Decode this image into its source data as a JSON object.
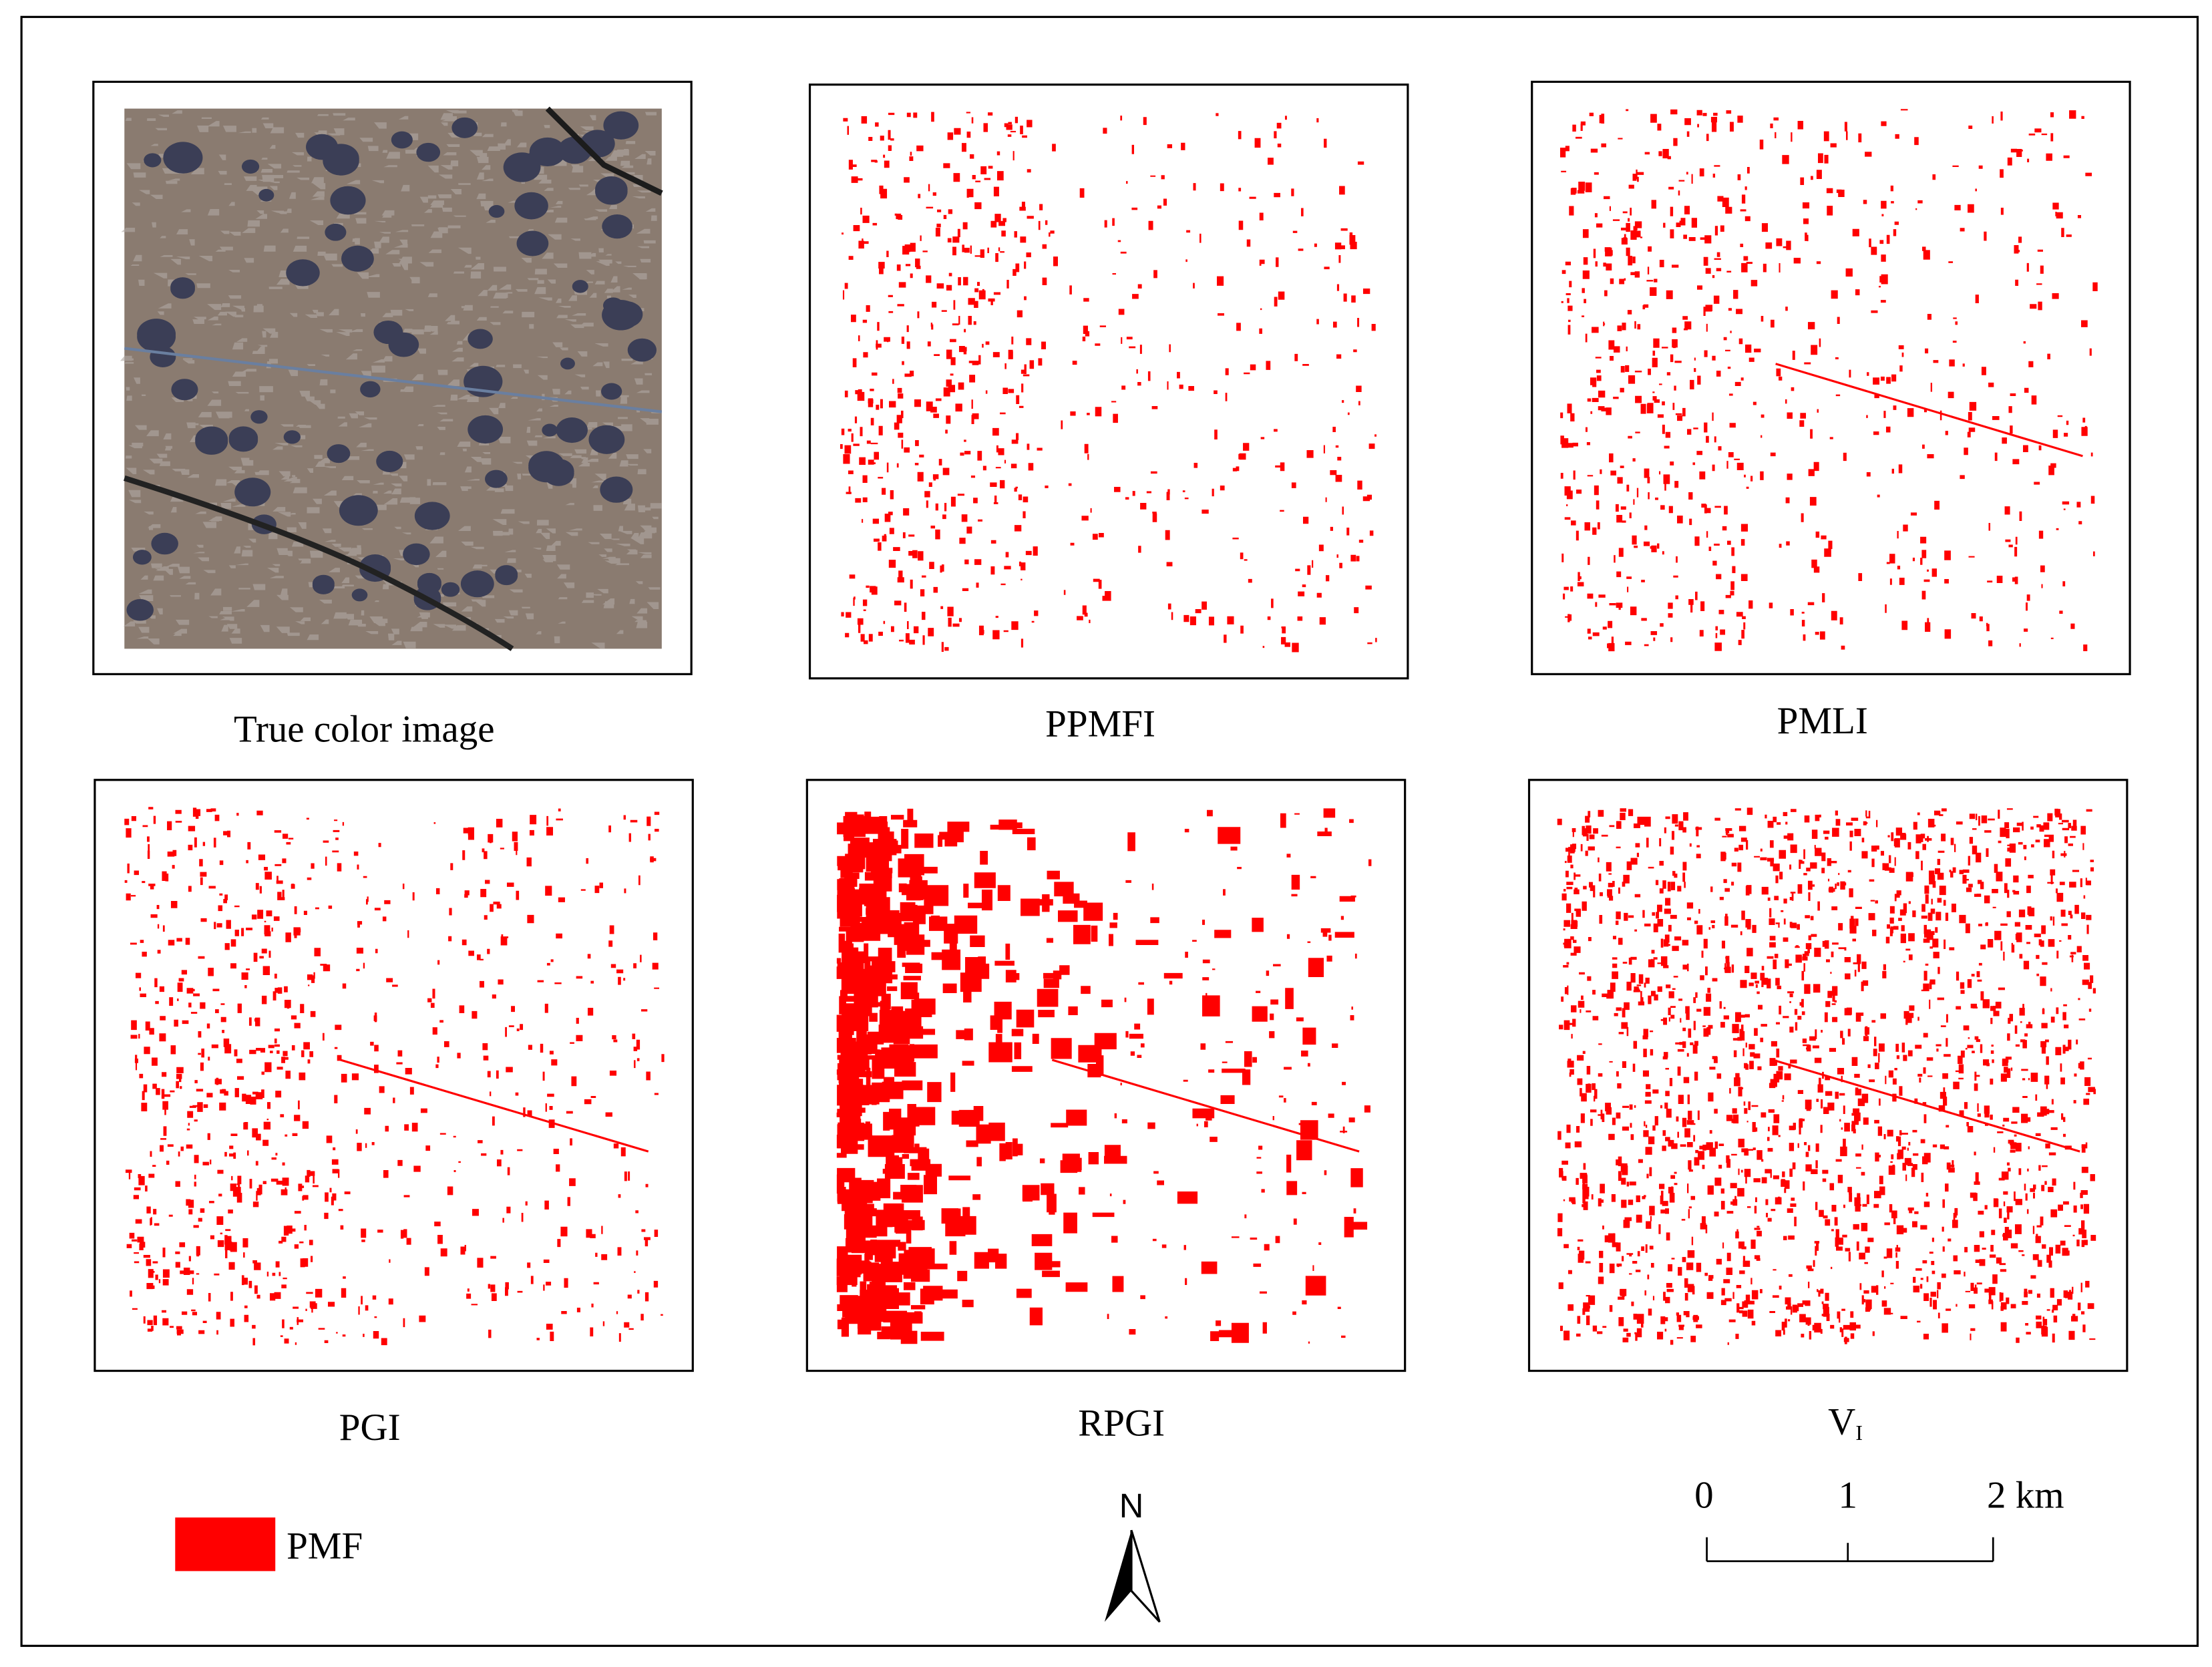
{
  "panels": [
    {
      "label": "True color image"
    },
    {
      "label": "PPMFI"
    },
    {
      "label": "PMLI"
    },
    {
      "label": "PGI"
    },
    {
      "label": "RPGI"
    },
    {
      "label": "V",
      "label_sub": "I"
    }
  ],
  "legend": {
    "label": "PMF"
  },
  "north_arrow": {
    "label": "N"
  },
  "scale_bar": {
    "labels": [
      "0",
      "1",
      "2 km"
    ]
  }
}
